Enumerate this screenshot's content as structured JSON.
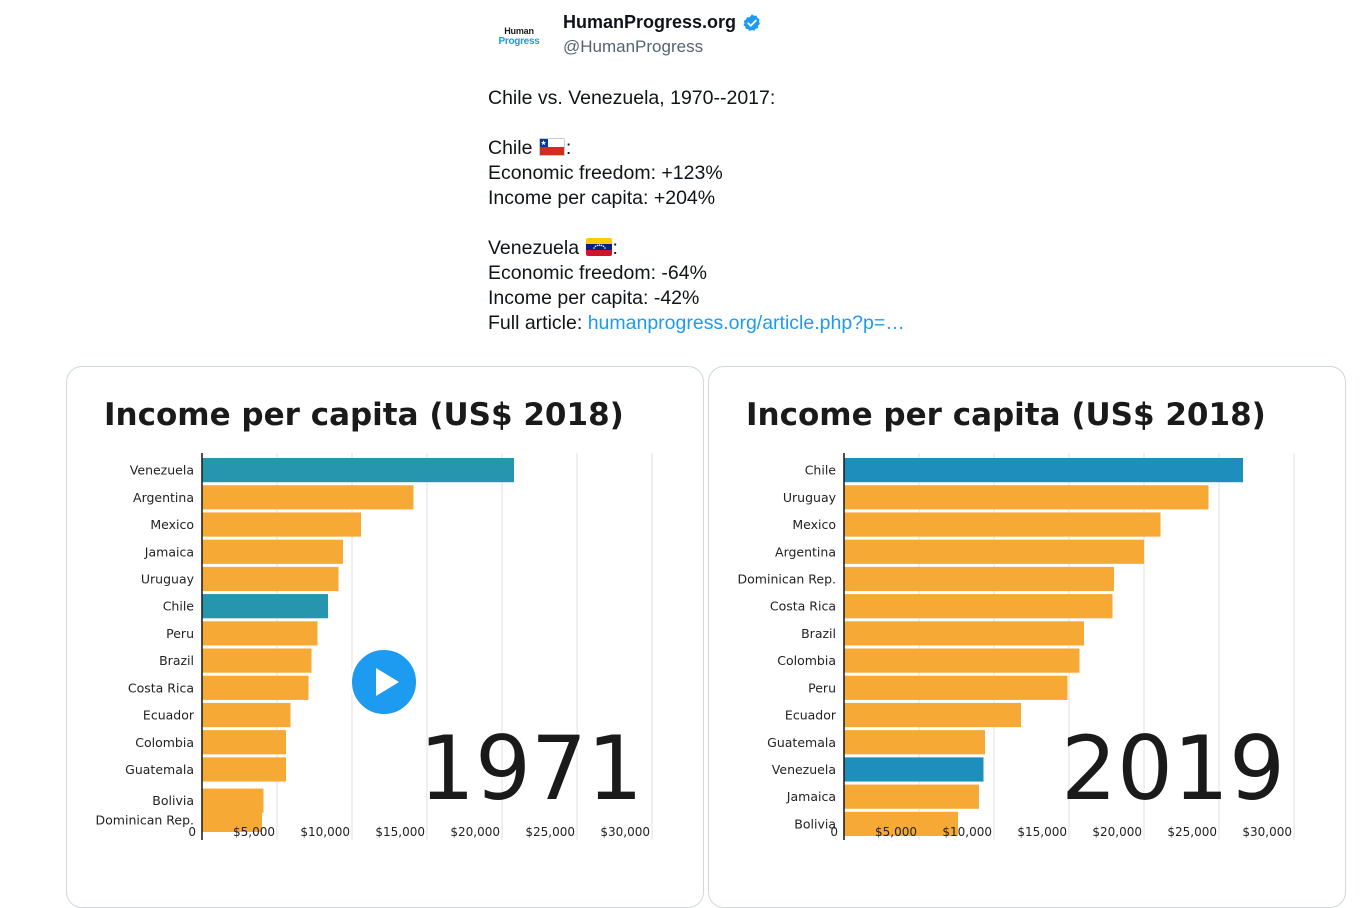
{
  "header": {
    "avatar_line1": "Human",
    "avatar_line2": "Progress",
    "display_name": "HumanProgress.org",
    "handle": "@HumanProgress",
    "verified_icon": "verified-badge-icon"
  },
  "tweet": {
    "line1": "Chile vs. Venezuela, 1970--2017:",
    "chile_label": "Chile ",
    "chile_colon": ":",
    "chile_freedom": "Economic freedom: +123%",
    "chile_income": "Income per capita: +204%",
    "venezuela_label": "Venezuela ",
    "venezuela_colon": ":",
    "venezuela_freedom": "Economic freedom: -64%",
    "venezuela_income": "Income per capita: -42%",
    "article_prefix": "Full article: ",
    "article_link": "humanprogress.org/article.php?p=…"
  },
  "colors": {
    "highlight_1971": "#2596ae",
    "highlight_2019": "#1e8fbd",
    "other_bar": "#f6a935",
    "link": "#1d9bf0",
    "play_button": "#1d9bf0"
  },
  "media": {
    "play_icon": "play-icon"
  },
  "chart_data": [
    {
      "type": "bar",
      "orientation": "horizontal",
      "title": "Income per capita (US$ 2018)",
      "year": "1971",
      "categories": [
        "Venezuela",
        "Argentina",
        "Mexico",
        "Jamaica",
        "Uruguay",
        "Chile",
        "Peru",
        "Brazil",
        "Costa Rica",
        "Ecuador",
        "Colombia",
        "Guatemala",
        "Bolivia",
        "Dominican Rep."
      ],
      "values": [
        20800,
        14100,
        10600,
        9400,
        9100,
        8400,
        7700,
        7300,
        7100,
        5900,
        5600,
        5600,
        4100,
        4000
      ],
      "highlight": [
        "Venezuela",
        "Chile"
      ],
      "xlim": [
        0,
        30000
      ],
      "xticks": [
        0,
        5000,
        10000,
        15000,
        20000,
        25000,
        30000
      ],
      "xtick_labels": [
        "0",
        "$5,000",
        "$10,000",
        "$15,000",
        "$20,000",
        "$25,000",
        "$30,000"
      ],
      "grid": true
    },
    {
      "type": "bar",
      "orientation": "horizontal",
      "title": "Income per capita (US$ 2018)",
      "year": "2019",
      "categories": [
        "Chile",
        "Uruguay",
        "Mexico",
        "Argentina",
        "Dominican Rep.",
        "Costa Rica",
        "Brazil",
        "Colombia",
        "Peru",
        "Ecuador",
        "Guatemala",
        "Venezuela",
        "Jamaica",
        "Bolivia"
      ],
      "values": [
        26600,
        24300,
        21100,
        20000,
        18000,
        17900,
        16000,
        15700,
        14900,
        11800,
        9400,
        9300,
        9000,
        7600
      ],
      "highlight": [
        "Chile",
        "Venezuela"
      ],
      "xlim": [
        0,
        30000
      ],
      "xticks": [
        0,
        5000,
        10000,
        15000,
        20000,
        25000,
        30000
      ],
      "xtick_labels": [
        "0",
        "$5,000",
        "$10,000",
        "$15,000",
        "$20,000",
        "$25,000",
        "$30,000"
      ],
      "grid": true
    }
  ]
}
